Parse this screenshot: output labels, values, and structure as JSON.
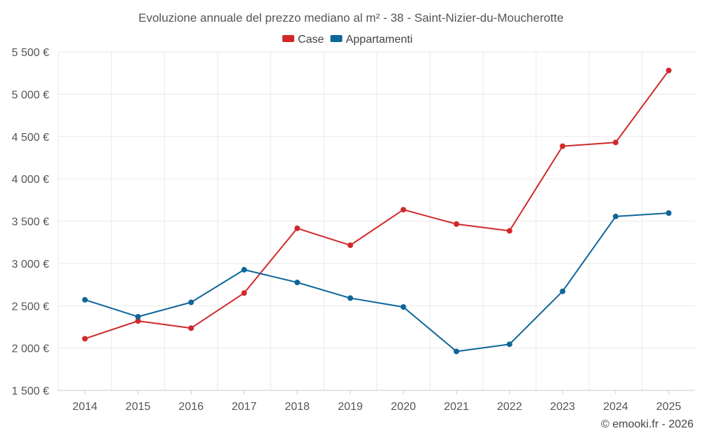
{
  "chart_data": {
    "type": "line",
    "title": "Evoluzione annuale del prezzo mediano al m² - 38 - Saint-Nizier-du-Moucherotte",
    "categories": [
      "2014",
      "2015",
      "2016",
      "2017",
      "2018",
      "2019",
      "2020",
      "2021",
      "2022",
      "2023",
      "2024",
      "2025"
    ],
    "ylim": [
      1500,
      5500
    ],
    "yticks": [
      1500,
      2000,
      2500,
      3000,
      3500,
      4000,
      4500,
      5000,
      5500
    ],
    "ytick_labels": [
      "1 500 €",
      "2 000 €",
      "2 500 €",
      "3 000 €",
      "3 500 €",
      "4 000 €",
      "4 500 €",
      "5 000 €",
      "5 500 €"
    ],
    "xlabel": "",
    "ylabel": "",
    "legend_position": "top-center",
    "grid": true,
    "series": [
      {
        "name": "Case",
        "color": "#d0292b",
        "values": [
          2110,
          2320,
          2235,
          2650,
          3415,
          3215,
          3635,
          3465,
          3385,
          4385,
          4430,
          5280
        ]
      },
      {
        "name": "Appartamenti",
        "color": "#0f6699",
        "values": [
          2570,
          2370,
          2540,
          2925,
          2775,
          2590,
          2485,
          1960,
          2045,
          2670,
          3555,
          3595
        ]
      }
    ]
  },
  "credit": "© emooki.fr - 2026"
}
